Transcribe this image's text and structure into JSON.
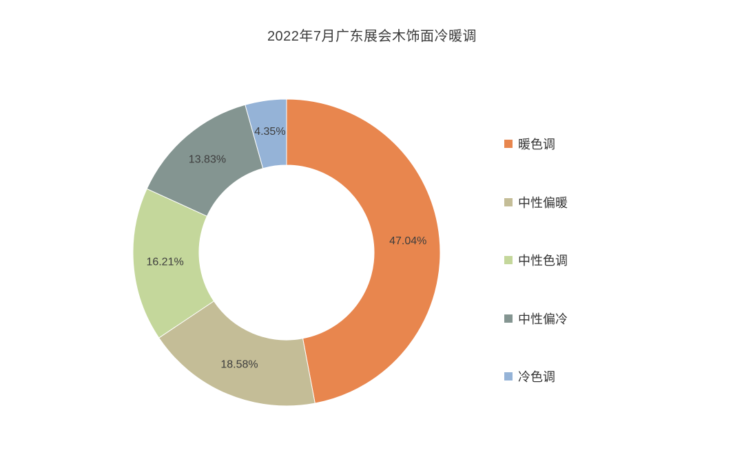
{
  "chart_data": {
    "type": "pie",
    "style": "donut",
    "title": "2022年7月广东展会木饰面冷暖调",
    "categories": [
      "暖色调",
      "中性偏暖",
      "中性色调",
      "中性偏冷",
      "冷色调"
    ],
    "values": [
      47.04,
      18.58,
      16.21,
      13.83,
      4.35
    ],
    "labels": [
      "47.04%",
      "18.58%",
      "16.21%",
      "13.83%",
      "4.35%"
    ],
    "unit": "%",
    "colors": [
      "#E8864E",
      "#C4BD97",
      "#C4D79B",
      "#849591",
      "#95B3D7"
    ],
    "legend_position": "right",
    "start_angle": "12 o'clock",
    "direction": "clockwise"
  }
}
